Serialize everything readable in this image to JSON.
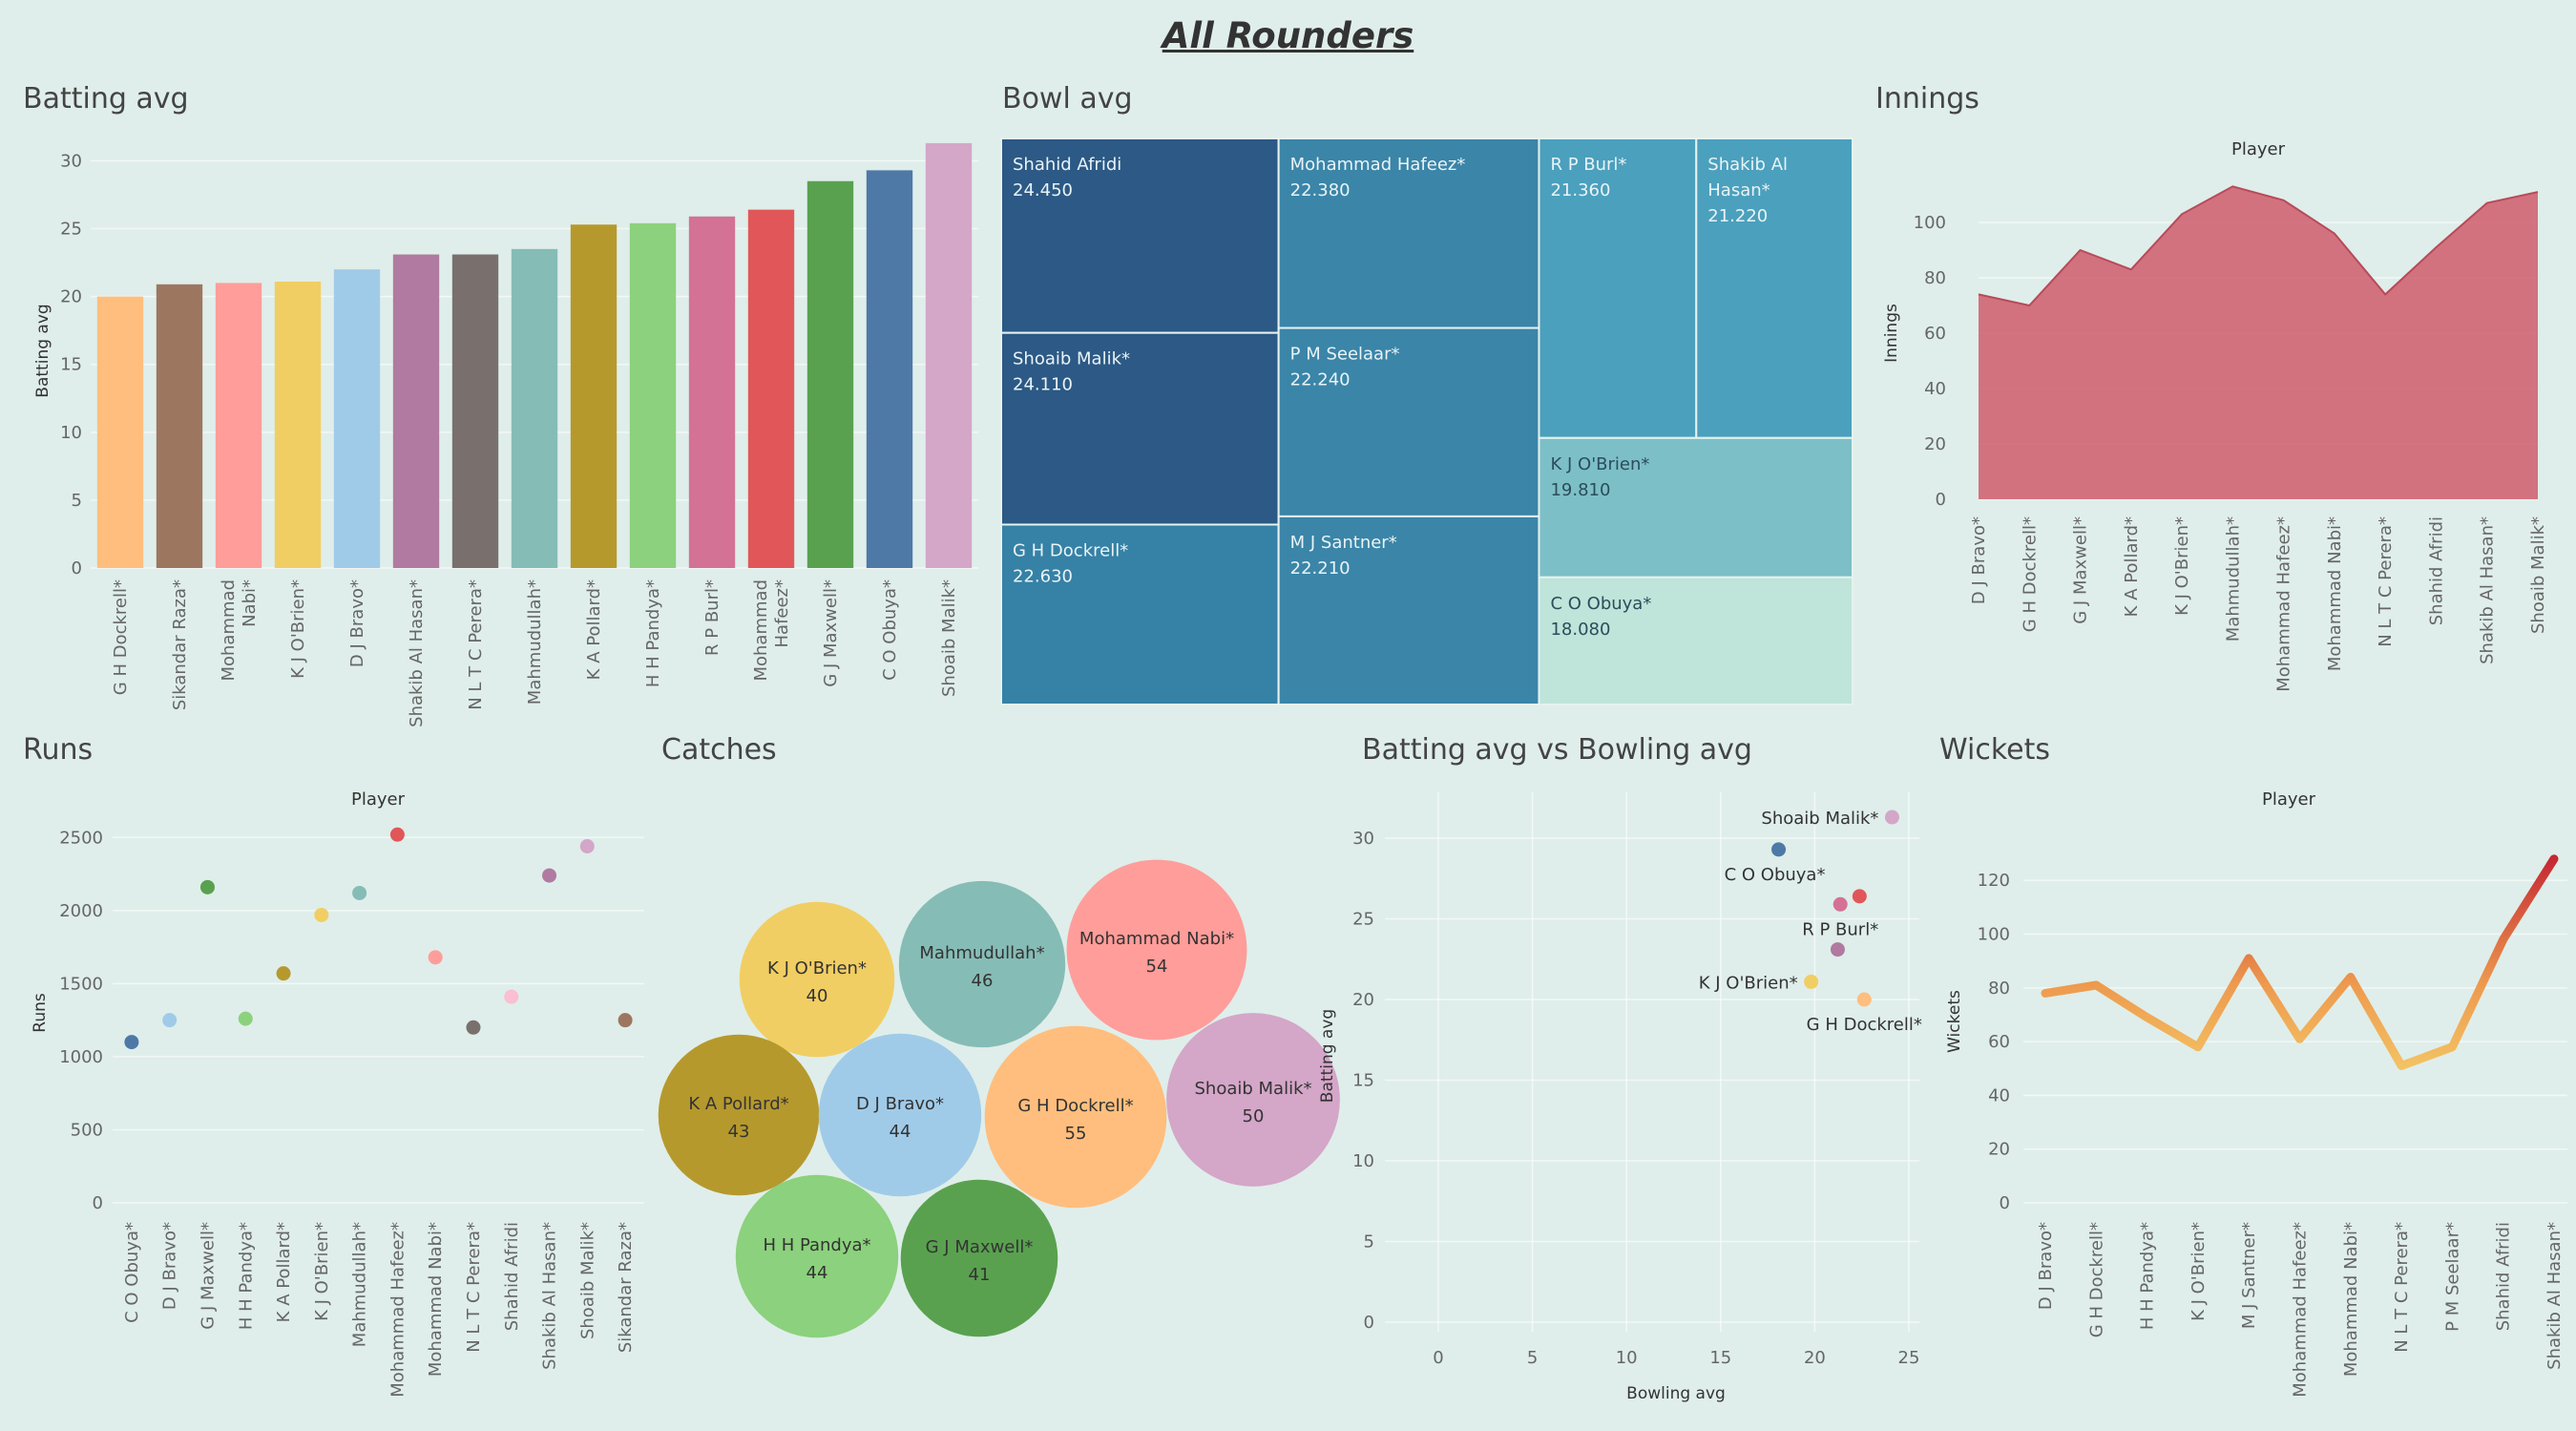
{
  "dashboard_title": "All Rounders",
  "panels": {
    "batting": "Batting avg",
    "bowl": "Bowl avg",
    "innings": "Innings",
    "runs": "Runs",
    "catches": "Catches",
    "scatter": "Batting avg vs Bowling avg",
    "wickets": "Wickets"
  },
  "chart_data": [
    {
      "id": "batting",
      "type": "bar",
      "title": "Batting avg",
      "ylabel": "Batting avg",
      "ylim": [
        0,
        32
      ],
      "yticks": [
        0,
        5,
        10,
        15,
        20,
        25,
        30
      ],
      "categories": [
        "G H Dockrell*",
        "Sikandar Raza*",
        "Mohammad Nabi*",
        "K J O'Brien*",
        "D J Bravo*",
        "Shakib Al Hasan*",
        "N L T C Perera*",
        "Mahmudullah*",
        "K A Pollard*",
        "H H Pandya*",
        "R P Burl*",
        "Mohammad Hafeez*",
        "G J Maxwell*",
        "C O Obuya*",
        "Shoaib Malik*"
      ],
      "category_lines": [
        [
          "G H Dockrell*"
        ],
        [
          "Sikandar Raza*"
        ],
        [
          "Mohammad",
          "Nabi*"
        ],
        [
          "K J O'Brien*"
        ],
        [
          "D J Bravo*"
        ],
        [
          "Shakib Al Hasan*"
        ],
        [
          "N L T C Perera*"
        ],
        [
          "Mahmudullah*"
        ],
        [
          "K A Pollard*"
        ],
        [
          "H H Pandya*"
        ],
        [
          "R P Burl*"
        ],
        [
          "Mohammad",
          "Hafeez*"
        ],
        [
          "G J Maxwell*"
        ],
        [
          "C O Obuya*"
        ],
        [
          "Shoaib Malik*"
        ]
      ],
      "values": [
        20.0,
        20.9,
        21.0,
        21.1,
        22.0,
        23.1,
        23.1,
        23.5,
        25.3,
        25.4,
        25.9,
        26.4,
        28.5,
        29.3,
        31.3
      ],
      "colors": [
        "#ffbe7d",
        "#9d7660",
        "#ff9d9a",
        "#f1ce63",
        "#a0cbe8",
        "#b07aa1",
        "#79706e",
        "#86bcb6",
        "#b6992d",
        "#8cd17d",
        "#d37295",
        "#e15759",
        "#59a14f",
        "#4e79a7",
        "#d4a6c8"
      ]
    },
    {
      "id": "bowl",
      "type": "treemap",
      "title": "Bowl avg",
      "items": [
        {
          "name": "Shahid Afridi",
          "lines": [
            "Shahid Afridi"
          ],
          "value": "24.450"
        },
        {
          "name": "Shoaib Malik*",
          "lines": [
            "Shoaib Malik*"
          ],
          "value": "24.110"
        },
        {
          "name": "G H Dockrell*",
          "lines": [
            "G H Dockrell*"
          ],
          "value": "22.630"
        },
        {
          "name": "Mohammad Hafeez*",
          "lines": [
            "Mohammad Hafeez*"
          ],
          "value": "22.380"
        },
        {
          "name": "P M Seelaar*",
          "lines": [
            "P M Seelaar*"
          ],
          "value": "22.240"
        },
        {
          "name": "M J Santner*",
          "lines": [
            "M J Santner*"
          ],
          "value": "22.210"
        },
        {
          "name": "R P Burl*",
          "lines": [
            "R P Burl*"
          ],
          "value": "21.360"
        },
        {
          "name": "Shakib Al Hasan*",
          "lines": [
            "Shakib Al",
            "Hasan*"
          ],
          "value": "21.220"
        },
        {
          "name": "K J O'Brien*",
          "lines": [
            "K J O'Brien*"
          ],
          "value": "19.810"
        },
        {
          "name": "C O Obuya*",
          "lines": [
            "C O Obuya*"
          ],
          "value": "18.080"
        }
      ]
    },
    {
      "id": "innings",
      "type": "area",
      "title": "Innings",
      "top_label": "Player",
      "ylabel": "Innings",
      "ylim": [
        0,
        120
      ],
      "yticks": [
        0,
        20,
        40,
        60,
        80,
        100
      ],
      "categories": [
        "D J Bravo*",
        "G H Dockrell*",
        "G J Maxwell*",
        "K A Pollard*",
        "K J O'Brien*",
        "Mahmudullah*",
        "Mohammad Hafeez*",
        "Mohammad Nabi*",
        "N L T C Perera*",
        "Shahid Afridi",
        "Shakib Al Hasan*",
        "Shoaib Malik*"
      ],
      "values": [
        74,
        70,
        90,
        83,
        103,
        113,
        108,
        96,
        74,
        91,
        107,
        111
      ],
      "color": "#d0616f"
    },
    {
      "id": "runs",
      "type": "scatter",
      "title": "Runs",
      "top_label": "Player",
      "ylabel": "Runs",
      "ylim": [
        0,
        2600
      ],
      "yticks": [
        0,
        500,
        1000,
        1500,
        2000,
        2500
      ],
      "categories": [
        "C O Obuya*",
        "D J Bravo*",
        "G J Maxwell*",
        "H H Pandya*",
        "K A Pollard*",
        "K J O'Brien*",
        "Mahmudullah*",
        "Mohammad Hafeez*",
        "Mohammad Nabi*",
        "N L T C Perera*",
        "Shahid Afridi",
        "Shakib Al Hasan*",
        "Shoaib Malik*",
        "Sikandar Raza*"
      ],
      "values": [
        1100,
        1250,
        2160,
        1260,
        1570,
        1970,
        2120,
        2520,
        1680,
        1200,
        1410,
        2240,
        2440,
        1250
      ],
      "colors": [
        "#4e79a7",
        "#a0cbe8",
        "#59a14f",
        "#8cd17d",
        "#b6992d",
        "#f1ce63",
        "#86bcb6",
        "#e15759",
        "#ff9d9a",
        "#79706e",
        "#fabfd2",
        "#b07aa1",
        "#d4a6c8",
        "#9d7660"
      ]
    },
    {
      "id": "catches",
      "type": "bubble",
      "title": "Catches",
      "items": [
        {
          "name": "K J O'Brien*",
          "value": 40,
          "color": "#f1ce63"
        },
        {
          "name": "Mahmudullah*",
          "value": 46,
          "color": "#86bcb6"
        },
        {
          "name": "Mohammad Nabi*",
          "value": 54,
          "color": "#ff9d9a"
        },
        {
          "name": "K A Pollard*",
          "value": 43,
          "color": "#b6992d"
        },
        {
          "name": "D J Bravo*",
          "value": 44,
          "color": "#a0cbe8"
        },
        {
          "name": "G H Dockrell*",
          "value": 55,
          "color": "#ffbe7d"
        },
        {
          "name": "Shoaib Malik*",
          "value": 50,
          "color": "#d4a6c8"
        },
        {
          "name": "H H Pandya*",
          "value": 44,
          "color": "#8cd17d"
        },
        {
          "name": "G J Maxwell*",
          "value": 41,
          "color": "#59a14f"
        }
      ]
    },
    {
      "id": "scatter",
      "type": "scatter",
      "title": "Batting avg vs Bowling avg",
      "xlabel": "Bowling avg",
      "ylabel": "Batting avg",
      "xlim": [
        0,
        25.5
      ],
      "ylim": [
        0,
        30.5
      ],
      "xticks": [
        0,
        5,
        10,
        15,
        20,
        25
      ],
      "yticks": [
        0,
        5,
        10,
        15,
        20,
        25,
        30
      ],
      "points": [
        {
          "name": "Shoaib Malik*",
          "x": 24.11,
          "y": 31.3,
          "color": "#d4a6c8",
          "label": "Shoaib Malik*",
          "anchor": "end",
          "dx": -14,
          "dy": 7
        },
        {
          "name": "C O Obuya*",
          "x": 18.08,
          "y": 29.3,
          "color": "#4e79a7",
          "label": "C O Obuya*",
          "anchor": "middle",
          "dx": -4,
          "dy": 32
        },
        {
          "name": "Mohammad Hafeez*",
          "x": 22.38,
          "y": 26.4,
          "color": "#e15759",
          "label": "",
          "anchor": "start",
          "dx": 0,
          "dy": 0
        },
        {
          "name": "R P Burl*",
          "x": 21.36,
          "y": 25.9,
          "color": "#d37295",
          "label": "R P Burl*",
          "anchor": "middle",
          "dx": 0,
          "dy": 32
        },
        {
          "name": "Shakib Al Hasan*",
          "x": 21.22,
          "y": 23.1,
          "color": "#b07aa1",
          "label": "",
          "anchor": "start",
          "dx": 0,
          "dy": 0
        },
        {
          "name": "K J O'Brien*",
          "x": 19.81,
          "y": 21.1,
          "color": "#f1ce63",
          "label": "K J O'Brien*",
          "anchor": "end",
          "dx": -14,
          "dy": 7
        },
        {
          "name": "G H Dockrell*",
          "x": 22.63,
          "y": 20.0,
          "color": "#ffbe7d",
          "label": "G H Dockrell*",
          "anchor": "middle",
          "dx": 0,
          "dy": 32
        }
      ]
    },
    {
      "id": "wickets",
      "type": "line",
      "title": "Wickets",
      "top_label": "Player",
      "ylabel": "Wickets",
      "ylim": [
        0,
        135
      ],
      "yticks": [
        0,
        20,
        40,
        60,
        80,
        100,
        120
      ],
      "categories": [
        "D J Bravo*",
        "G H Dockrell*",
        "H H Pandya*",
        "K J O'Brien*",
        "M J Santner*",
        "Mohammad Hafeez*",
        "Mohammad Nabi*",
        "N L T C Perera*",
        "P M Seelaar*",
        "Shahid Afridi",
        "Shakib Al Hasan*"
      ],
      "values": [
        78,
        81,
        69,
        58,
        91,
        61,
        84,
        51,
        58,
        98,
        128
      ]
    }
  ]
}
